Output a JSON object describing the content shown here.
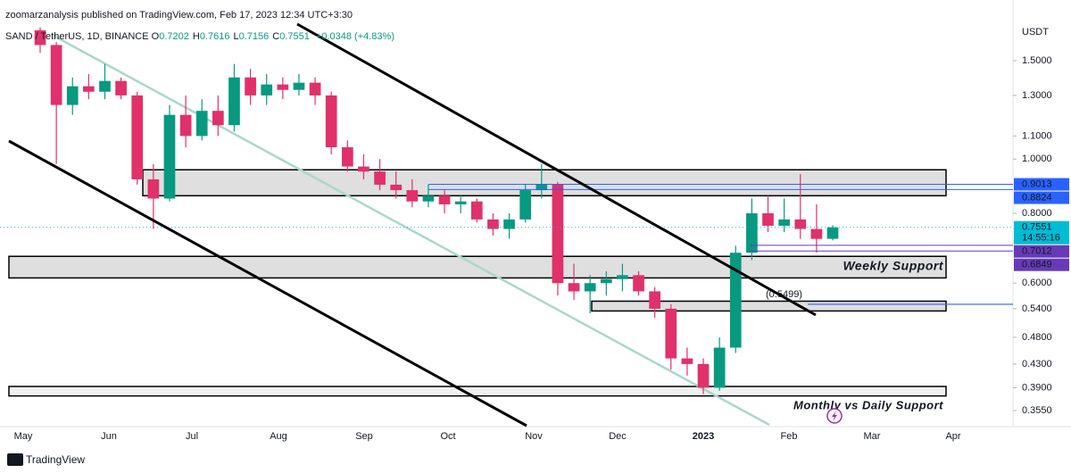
{
  "header": {
    "publisher": "zoomarzanalysis published on TradingView.com, Feb 17, 2023 12:34 UTC+3:30",
    "symbol": "SAND / TetherUS, 1D, BINANCE",
    "ohlc": [
      [
        "O",
        "0.7202"
      ],
      [
        "H",
        "0.7616"
      ],
      [
        "L",
        "0.7156"
      ],
      [
        "C",
        "0.7551"
      ]
    ],
    "change": "+0.0348 (+4.83%)"
  },
  "price_axis": {
    "unit": "USDT",
    "log_scale": true,
    "ticks": [
      {
        "value": 1.5,
        "label": "1.5000"
      },
      {
        "value": 1.3,
        "label": "1.3000"
      },
      {
        "value": 1.1,
        "label": "1.1000"
      },
      {
        "value": 1,
        "label": "1.0000"
      },
      {
        "value": 0.8,
        "label": "0.8000"
      },
      {
        "value": 0.6,
        "label": "0.6000"
      },
      {
        "value": 0.54,
        "label": "0.5400"
      },
      {
        "value": 0.48,
        "label": "0.4800"
      },
      {
        "value": 0.43,
        "label": "0.4300"
      },
      {
        "value": 0.39,
        "label": "0.3900"
      },
      {
        "value": 0.355,
        "label": "0.3550"
      }
    ]
  },
  "time_axis": {
    "labels": [
      "May",
      "Jun",
      "Jul",
      "Aug",
      "Sep",
      "Oct",
      "Nov",
      "Dec",
      "2023",
      "Feb",
      "Mar",
      "Apr"
    ]
  },
  "candles": {
    "up_color": "#089981",
    "down_color": "#e0316a",
    "ohlc": [
      [
        1.7,
        1.72,
        1.55,
        1.6
      ],
      [
        1.6,
        1.62,
        0.98,
        1.25
      ],
      [
        1.25,
        1.4,
        1.2,
        1.35
      ],
      [
        1.35,
        1.42,
        1.28,
        1.32
      ],
      [
        1.32,
        1.48,
        1.28,
        1.38
      ],
      [
        1.38,
        1.4,
        1.28,
        1.3
      ],
      [
        1.3,
        1.32,
        0.9,
        0.92
      ],
      [
        0.92,
        0.98,
        0.75,
        0.85
      ],
      [
        0.85,
        1.25,
        0.84,
        1.2
      ],
      [
        1.2,
        1.3,
        1.05,
        1.1
      ],
      [
        1.1,
        1.28,
        1.08,
        1.22
      ],
      [
        1.22,
        1.3,
        1.1,
        1.15
      ],
      [
        1.15,
        1.48,
        1.12,
        1.4
      ],
      [
        1.4,
        1.45,
        1.25,
        1.3
      ],
      [
        1.3,
        1.42,
        1.25,
        1.36
      ],
      [
        1.36,
        1.4,
        1.28,
        1.33
      ],
      [
        1.33,
        1.42,
        1.3,
        1.37
      ],
      [
        1.37,
        1.4,
        1.25,
        1.3
      ],
      [
        1.3,
        1.32,
        1.02,
        1.05
      ],
      [
        1.05,
        1.08,
        0.95,
        0.97
      ],
      [
        0.97,
        1.02,
        0.92,
        0.95
      ],
      [
        0.95,
        1.0,
        0.88,
        0.9
      ],
      [
        0.9,
        0.95,
        0.85,
        0.88
      ],
      [
        0.88,
        0.92,
        0.82,
        0.84
      ],
      [
        0.84,
        0.9,
        0.82,
        0.86
      ],
      [
        0.86,
        0.88,
        0.8,
        0.83
      ],
      [
        0.83,
        0.86,
        0.8,
        0.84
      ],
      [
        0.84,
        0.85,
        0.77,
        0.78
      ],
      [
        0.78,
        0.8,
        0.73,
        0.75
      ],
      [
        0.75,
        0.8,
        0.72,
        0.78
      ],
      [
        0.78,
        0.9,
        0.77,
        0.88
      ],
      [
        0.88,
        0.98,
        0.85,
        0.9
      ],
      [
        0.9,
        0.91,
        0.57,
        0.6
      ],
      [
        0.6,
        0.65,
        0.56,
        0.58
      ],
      [
        0.58,
        0.62,
        0.53,
        0.6
      ],
      [
        0.6,
        0.63,
        0.57,
        0.61
      ],
      [
        0.61,
        0.65,
        0.58,
        0.62
      ],
      [
        0.62,
        0.63,
        0.57,
        0.58
      ],
      [
        0.58,
        0.59,
        0.52,
        0.54
      ],
      [
        0.54,
        0.55,
        0.42,
        0.44
      ],
      [
        0.44,
        0.46,
        0.41,
        0.43
      ],
      [
        0.43,
        0.44,
        0.38,
        0.39
      ],
      [
        0.39,
        0.48,
        0.385,
        0.46
      ],
      [
        0.46,
        0.7,
        0.45,
        0.68
      ],
      [
        0.68,
        0.85,
        0.66,
        0.8
      ],
      [
        0.8,
        0.86,
        0.74,
        0.76
      ],
      [
        0.76,
        0.85,
        0.74,
        0.78
      ],
      [
        0.78,
        0.94,
        0.72,
        0.75
      ],
      [
        0.75,
        0.83,
        0.68,
        0.72
      ],
      [
        0.7202,
        0.7616,
        0.7156,
        0.7551
      ]
    ]
  },
  "zones": [
    {
      "high": 0.957,
      "low": 0.86
    },
    {
      "high": 0.67,
      "low": 0.613
    },
    {
      "high": 0.557,
      "low": 0.535
    },
    {
      "high": 0.392,
      "low": 0.377
    }
  ],
  "levels": [
    {
      "value": 0.9013,
      "label": "0.9013",
      "color": "#2962ff"
    },
    {
      "value": 0.8824,
      "label": "0.8824",
      "color": "#2962ff"
    },
    {
      "value": 0.7551,
      "label": "0.7551",
      "color": "#00bcd4"
    },
    {
      "value": 0.7012,
      "label": "0.7012",
      "color": "#673ab7"
    },
    {
      "value": 0.6849,
      "label": "0.6849",
      "color": "#673ab7"
    }
  ],
  "countdown": "14:55:16",
  "fib_level": {
    "value": 0.5499,
    "label": "(0.5499)",
    "color": "#2962ff"
  },
  "annotations": {
    "weekly": "Weekly Support",
    "monthly": "Monthly vs Daily Support"
  },
  "footer": "TradingView"
}
